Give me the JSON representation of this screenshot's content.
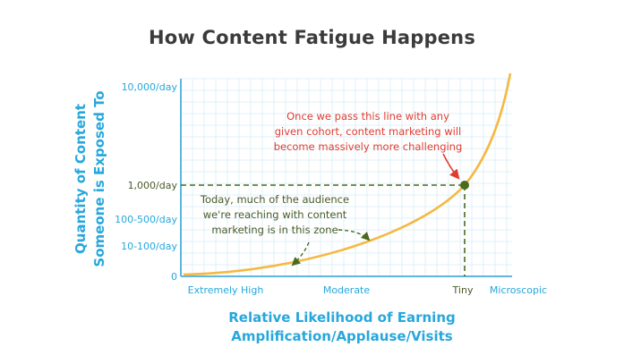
{
  "chart_data": {
    "type": "line",
    "title": "How Content Fatigue Happens",
    "xlabel": [
      "Relative Likelihood of Earning",
      "Amplification/Applause/Visits"
    ],
    "ylabel": [
      "Quantity of Content",
      "Someone is Exposed To"
    ],
    "x_categories": [
      "Extremely High",
      "Moderate",
      "Tiny",
      "Microscopic"
    ],
    "y_categories": [
      "0",
      "10-100/day",
      "100-500/day",
      "1,000/day",
      "10,000/day"
    ],
    "grid": true,
    "annotations": [
      {
        "text": [
          "Once we pass this line with any",
          "given cohort, content marketing will",
          "become massively more challenging"
        ],
        "color": "#e03c31"
      },
      {
        "text": [
          "Today, much of the audience",
          "we're reaching with content",
          "marketing is in this zone"
        ],
        "color": "#4a5a2a"
      }
    ],
    "marked_point": {
      "x": "Tiny",
      "y": "1,000/day"
    }
  },
  "colors": {
    "axis": "#5fb6de",
    "grid": "#dff0f8",
    "curve": "#f5b942",
    "guide": "#4a6a1e",
    "title": "#3b3b3b",
    "red": "#e03c31",
    "label": "#27a7dc"
  }
}
